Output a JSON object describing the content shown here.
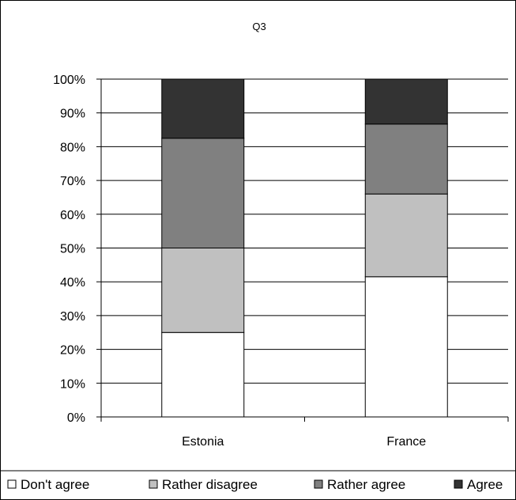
{
  "chart_data": {
    "type": "bar",
    "stacked": true,
    "percent": true,
    "title": "Q3",
    "xlabel": "",
    "ylabel": "",
    "categories": [
      "Estonia",
      "France"
    ],
    "series": [
      {
        "name": "Don't agree",
        "color": "#ffffff",
        "values": [
          25,
          41.5
        ]
      },
      {
        "name": "Rather disagree",
        "color": "#c0c0c0",
        "values": [
          25,
          24.5
        ]
      },
      {
        "name": "Rather agree",
        "color": "#808080",
        "values": [
          32.5,
          20.7
        ]
      },
      {
        "name": "Agree",
        "color": "#333333",
        "values": [
          17.5,
          13.3
        ]
      }
    ],
    "ylim": [
      0,
      100
    ],
    "yticks": [
      "0%",
      "10%",
      "20%",
      "30%",
      "40%",
      "50%",
      "60%",
      "70%",
      "80%",
      "90%",
      "100%"
    ],
    "grid": true,
    "legend_position": "bottom"
  }
}
